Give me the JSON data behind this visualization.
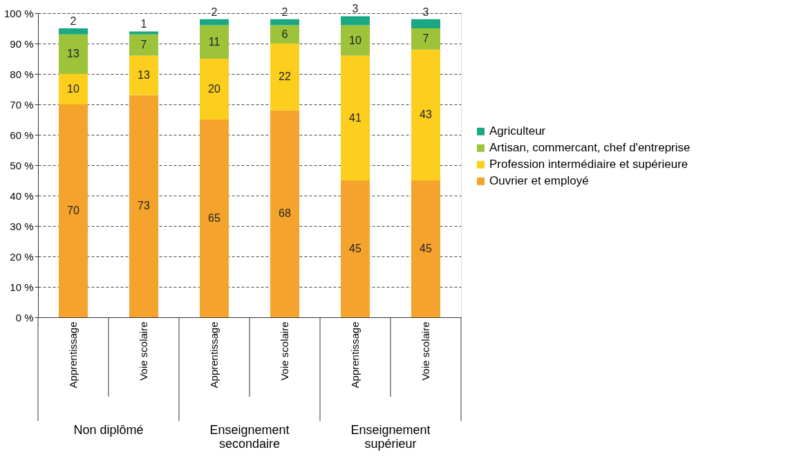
{
  "chart_data": {
    "type": "bar",
    "stacked": true,
    "categories": [
      "Apprentissage",
      "Voie scolaire",
      "Apprentissage",
      "Voie scolaire",
      "Apprentissage",
      "Voie scolaire"
    ],
    "annotations": [
      "Non diplômé",
      "Enseignement\nsecondaire",
      "Enseignement\nsupérieur"
    ],
    "series": [
      {
        "name": "Ouvrier et employé",
        "color": "#f4a42c",
        "values": [
          70,
          73,
          65,
          68,
          45,
          45
        ]
      },
      {
        "name": "Profession intermédiaire et supérieure",
        "color": "#fccf1f",
        "values": [
          10,
          13,
          20,
          22,
          41,
          43
        ]
      },
      {
        "name": "Artisan, commercant, chef d'entreprise",
        "color": "#9dc33b",
        "values": [
          13,
          7,
          11,
          6,
          10,
          7
        ]
      },
      {
        "name": "Agriculteur",
        "color": "#1aa882",
        "values": [
          2,
          1,
          2,
          2,
          3,
          3
        ]
      }
    ],
    "data_labels": true,
    "ylim": [
      0,
      100
    ],
    "yticks": [
      {
        "value": 0,
        "label": "0 %"
      },
      {
        "value": 10,
        "label": "10 %"
      },
      {
        "value": 20,
        "label": "20 %"
      },
      {
        "value": 30,
        "label": "30 %"
      },
      {
        "value": 40,
        "label": "40 %"
      },
      {
        "value": 50,
        "label": "50 %"
      },
      {
        "value": 60,
        "label": "60 %"
      },
      {
        "value": 70,
        "label": "70 %"
      },
      {
        "value": 80,
        "label": "80 %"
      },
      {
        "value": 90,
        "label": "90 %"
      },
      {
        "value": 100,
        "label": "100 %"
      }
    ],
    "grid": "y",
    "legend": "right"
  }
}
